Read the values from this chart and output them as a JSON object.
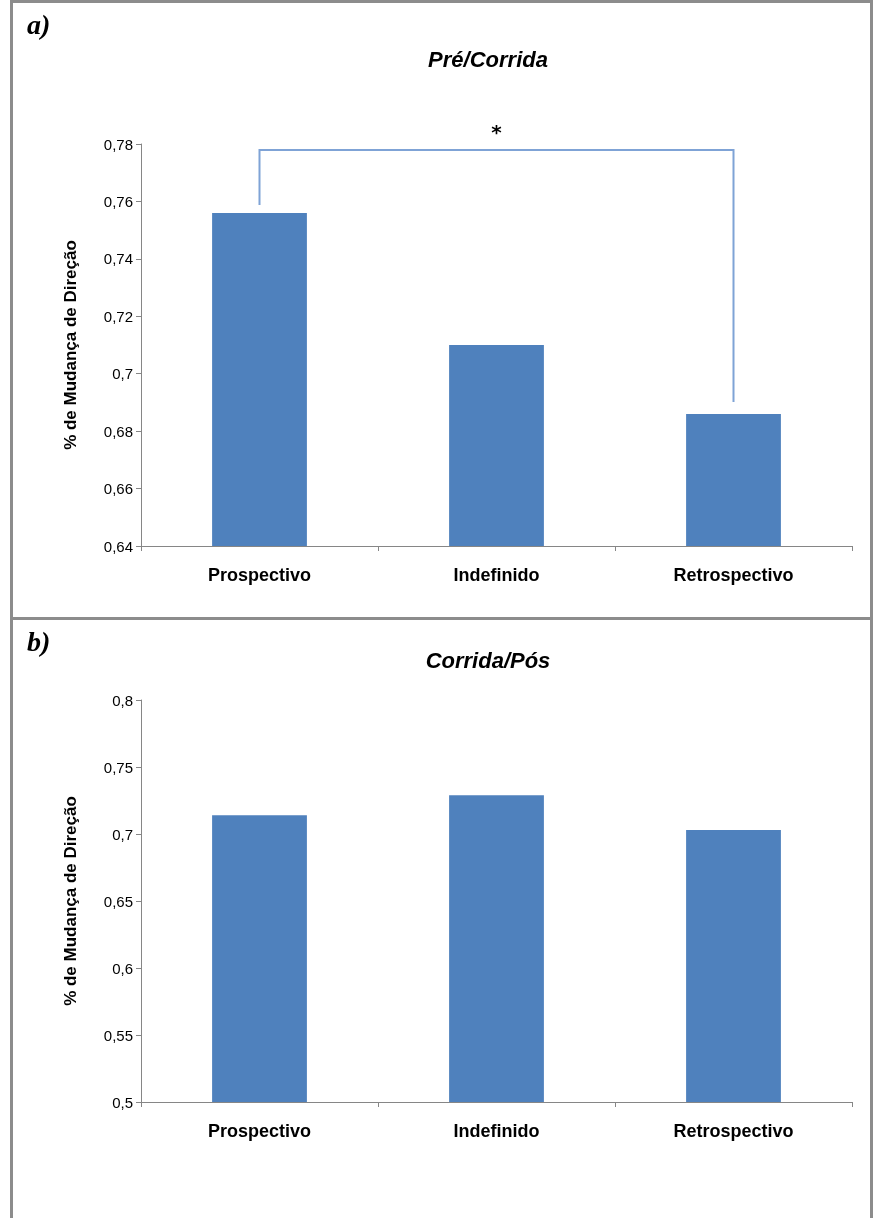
{
  "chart_data": [
    {
      "type": "bar",
      "title": "Pré/Corrida",
      "ylabel": "% de Mudança de Direção",
      "categories": [
        "Prospectivo",
        "Indefinido",
        "Retrospectivo"
      ],
      "values": [
        0.756,
        0.71,
        0.686
      ],
      "color": "#4f81bd",
      "ylim": [
        0.64,
        0.78
      ],
      "yticks": [
        {
          "value": 0.64,
          "label": "0,64"
        },
        {
          "value": 0.66,
          "label": "0,66"
        },
        {
          "value": 0.68,
          "label": "0,68"
        },
        {
          "value": 0.7,
          "label": "0,7"
        },
        {
          "value": 0.72,
          "label": "0,72"
        },
        {
          "value": 0.74,
          "label": "0,74"
        },
        {
          "value": 0.76,
          "label": "0,76"
        },
        {
          "value": 0.78,
          "label": "0,78"
        }
      ],
      "grid": false,
      "annotations": [
        "a)",
        "*"
      ]
    },
    {
      "type": "bar",
      "title": "Corrida/Pós",
      "ylabel": "% de Mudança de Direção",
      "categories": [
        "Prospectivo",
        "Indefinido",
        "Retrospectivo"
      ],
      "values": [
        0.714,
        0.729,
        0.703
      ],
      "color": "#4f81bd",
      "ylim": [
        0.5,
        0.8
      ],
      "yticks": [
        {
          "value": 0.5,
          "label": "0,5"
        },
        {
          "value": 0.55,
          "label": "0,55"
        },
        {
          "value": 0.6,
          "label": "0,6"
        },
        {
          "value": 0.65,
          "label": "0,65"
        },
        {
          "value": 0.7,
          "label": "0,7"
        },
        {
          "value": 0.75,
          "label": "0,75"
        },
        {
          "value": 0.8,
          "label": "0,8"
        }
      ],
      "grid": false,
      "annotations": [
        "b)"
      ]
    }
  ]
}
